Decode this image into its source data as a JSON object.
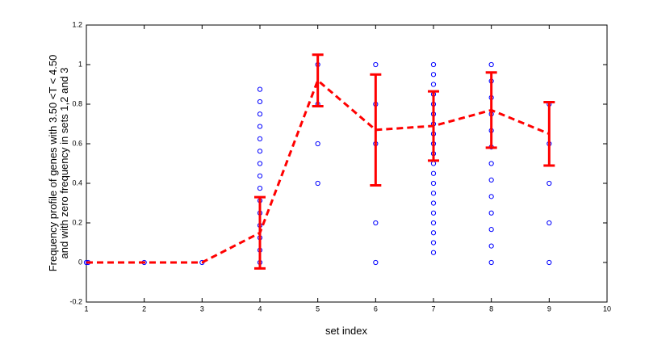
{
  "chart_data": {
    "type": "scatter",
    "xlabel": "set index",
    "ylabel": [
      "Frequency profile of genes with 3.50 <T < 4.50",
      "and with zero frequency in sets 1,2 and 3"
    ],
    "xlim": [
      1,
      10
    ],
    "xticks": [
      1,
      2,
      3,
      4,
      5,
      6,
      7,
      8,
      9,
      10
    ],
    "ylim": [
      -0.2,
      1.2
    ],
    "yticks": [
      -0.2,
      0,
      0.2,
      0.4,
      0.6,
      0.8,
      1,
      1.2
    ],
    "points": {
      "color": "#0000ff",
      "x": [
        1,
        1.03,
        2,
        3,
        4,
        4,
        4,
        4,
        4,
        4,
        4,
        4,
        4,
        4,
        4,
        4,
        4,
        4,
        4,
        5,
        5,
        5,
        5,
        6,
        6,
        6,
        6,
        6,
        7,
        7,
        7,
        7,
        7,
        7,
        7,
        7,
        7,
        7,
        7,
        7,
        7,
        7,
        7,
        7,
        7,
        7,
        7,
        7,
        8,
        8,
        8,
        8,
        8,
        8,
        8,
        8,
        8,
        8,
        8,
        8,
        8,
        9,
        9,
        9,
        9,
        9
      ],
      "y": [
        0,
        0,
        0,
        0,
        0.875,
        0.8125,
        0.75,
        0.6875,
        0.625,
        0.5625,
        0.5,
        0.4375,
        0.375,
        0.3125,
        0.25,
        0.1875,
        0.125,
        0.0625,
        0,
        1,
        0.8,
        0.6,
        0.4,
        1,
        0.8,
        0.6,
        0.2,
        0,
        1,
        0.95,
        0.9,
        0.85,
        0.8,
        0.75,
        0.7,
        0.65,
        0.6,
        0.55,
        0.5,
        0.45,
        0.4,
        0.35,
        0.3,
        0.25,
        0.2,
        0.15,
        0.1,
        0.05,
        1,
        0.9167,
        0.8333,
        0.75,
        0.6667,
        0.5833,
        0.5,
        0.4167,
        0.3333,
        0.25,
        0.1667,
        0.0833,
        0,
        0.8,
        0.6,
        0.4,
        0.2,
        0
      ]
    },
    "mean": {
      "color": "#ff0000",
      "x": [
        1,
        2,
        3,
        4,
        5,
        6,
        7,
        8,
        9
      ],
      "values": [
        0,
        0,
        0,
        0.15,
        0.92,
        0.67,
        0.69,
        0.77,
        0.65
      ],
      "errors": [
        null,
        null,
        null,
        0.18,
        0.13,
        0.28,
        0.175,
        0.19,
        0.16
      ]
    }
  }
}
